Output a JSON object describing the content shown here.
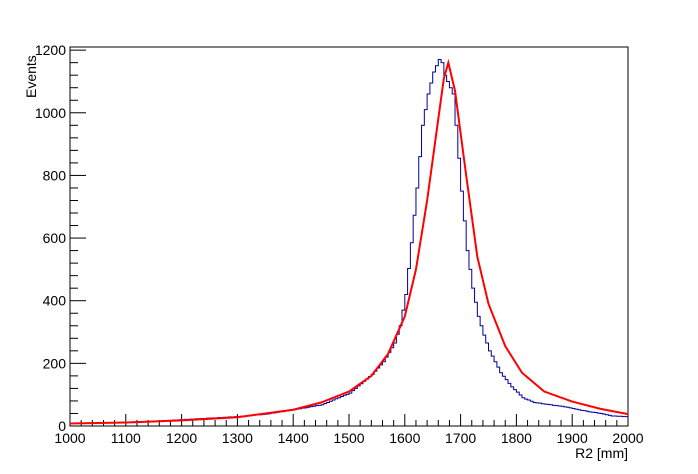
{
  "chart_data": {
    "type": "histogram",
    "title": "",
    "xlabel": "R2 [mm]",
    "ylabel": "Events",
    "xlim": [
      1000,
      2000
    ],
    "ylim": [
      0,
      1210
    ],
    "x_ticks": [
      1000,
      1100,
      1200,
      1300,
      1400,
      1500,
      1600,
      1700,
      1800,
      1900,
      2000
    ],
    "y_ticks": [
      0,
      200,
      400,
      600,
      800,
      1000,
      1200
    ],
    "grid": false,
    "legend": "none",
    "colors": {
      "histogram": "#000099",
      "fit": "#ff0000"
    },
    "series": [
      {
        "kind": "histogram",
        "bin_width": 5,
        "x_bin_centers": [
          1002.5,
          1052.5,
          1102.5,
          1152.5,
          1202.5,
          1252.5,
          1302.5,
          1352.5,
          1402.5,
          1452.5,
          1502.5,
          1542.5,
          1562.5,
          1582.5,
          1592.5,
          1602.5,
          1612.5,
          1622.5,
          1632.5,
          1642.5,
          1652.5,
          1662.5,
          1667.5,
          1672.5,
          1677.5,
          1682.5,
          1687.5,
          1692.5,
          1702.5,
          1712.5,
          1722.5,
          1732.5,
          1742.5,
          1752.5,
          1772.5,
          1792.5,
          1812.5,
          1832.5,
          1852.5,
          1872.5,
          1892.5,
          1912.5,
          1932.5,
          1952.5,
          1972.5,
          1997.5
        ],
        "values": [
          8,
          10,
          12,
          15,
          20,
          25,
          30,
          38,
          52,
          68,
          105,
          165,
          205,
          265,
          320,
          420,
          585,
          760,
          960,
          1060,
          1130,
          1170,
          1160,
          1120,
          1100,
          1080,
          1060,
          960,
          750,
          560,
          440,
          350,
          290,
          240,
          170,
          125,
          90,
          75,
          70,
          65,
          60,
          52,
          45,
          40,
          32,
          30
        ]
      },
      {
        "kind": "fit",
        "x": [
          1000,
          1100,
          1200,
          1300,
          1400,
          1450,
          1500,
          1540,
          1570,
          1600,
          1620,
          1640,
          1660,
          1670,
          1678,
          1690,
          1710,
          1730,
          1750,
          1780,
          1810,
          1850,
          1900,
          1950,
          2000
        ],
        "y": [
          8,
          11,
          18,
          28,
          52,
          75,
          110,
          160,
          230,
          350,
          500,
          720,
          980,
          1110,
          1160,
          1070,
          800,
          540,
          390,
          255,
          170,
          110,
          78,
          55,
          38
        ]
      }
    ]
  }
}
